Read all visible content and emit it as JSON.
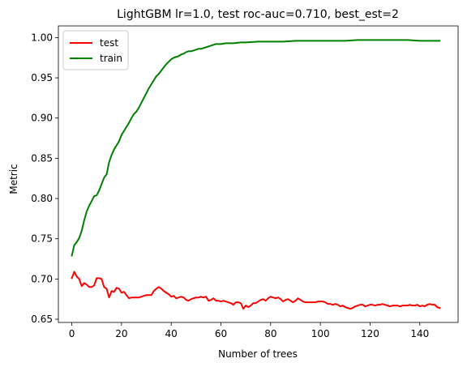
{
  "chart_data": {
    "type": "line",
    "title": "LightGBM lr=1.0, test roc-auc=0.710, best_est=2",
    "xlabel": "Number of trees",
    "ylabel": "Metric",
    "xlim": [
      -5.4,
      155.4
    ],
    "ylim": [
      0.646,
      1.0145
    ],
    "xticks": [
      0,
      20,
      40,
      60,
      80,
      100,
      120,
      140
    ],
    "xtick_labels": [
      "0",
      "20",
      "40",
      "60",
      "80",
      "100",
      "120",
      "140"
    ],
    "yticks": [
      0.65,
      0.7,
      0.75,
      0.8,
      0.85,
      0.9,
      0.95,
      1.0
    ],
    "ytick_labels": [
      "0.65",
      "0.70",
      "0.75",
      "0.80",
      "0.85",
      "0.90",
      "0.95",
      "1.00"
    ],
    "grid": false,
    "legend": "upper left",
    "series": [
      {
        "name": "test",
        "color": "#ff0000",
        "points": [
          [
            0,
            0.701
          ],
          [
            1,
            0.709
          ],
          [
            2,
            0.703
          ],
          [
            3,
            0.7
          ],
          [
            4,
            0.691
          ],
          [
            5,
            0.695
          ],
          [
            6,
            0.693
          ],
          [
            7,
            0.69
          ],
          [
            8,
            0.69
          ],
          [
            9,
            0.692
          ],
          [
            10,
            0.701
          ],
          [
            11,
            0.701
          ],
          [
            12,
            0.7
          ],
          [
            13,
            0.69
          ],
          [
            14,
            0.688
          ],
          [
            15,
            0.677
          ],
          [
            16,
            0.685
          ],
          [
            17,
            0.684
          ],
          [
            18,
            0.689
          ],
          [
            19,
            0.688
          ],
          [
            20,
            0.683
          ],
          [
            21,
            0.684
          ],
          [
            22,
            0.68
          ],
          [
            23,
            0.676
          ],
          [
            24,
            0.677
          ],
          [
            25,
            0.677
          ],
          [
            26,
            0.677
          ],
          [
            27,
            0.677
          ],
          [
            28,
            0.678
          ],
          [
            29,
            0.679
          ],
          [
            30,
            0.68
          ],
          [
            31,
            0.68
          ],
          [
            32,
            0.68
          ],
          [
            33,
            0.685
          ],
          [
            34,
            0.688
          ],
          [
            35,
            0.69
          ],
          [
            36,
            0.688
          ],
          [
            37,
            0.685
          ],
          [
            38,
            0.683
          ],
          [
            39,
            0.681
          ],
          [
            40,
            0.678
          ],
          [
            41,
            0.679
          ],
          [
            42,
            0.676
          ],
          [
            43,
            0.677
          ],
          [
            44,
            0.678
          ],
          [
            45,
            0.677
          ],
          [
            46,
            0.674
          ],
          [
            47,
            0.673
          ],
          [
            48,
            0.675
          ],
          [
            49,
            0.676
          ],
          [
            50,
            0.677
          ],
          [
            51,
            0.677
          ],
          [
            52,
            0.678
          ],
          [
            53,
            0.677
          ],
          [
            54,
            0.678
          ],
          [
            55,
            0.673
          ],
          [
            56,
            0.674
          ],
          [
            57,
            0.676
          ],
          [
            58,
            0.673
          ],
          [
            59,
            0.673
          ],
          [
            60,
            0.672
          ],
          [
            61,
            0.673
          ],
          [
            62,
            0.672
          ],
          [
            63,
            0.671
          ],
          [
            64,
            0.67
          ],
          [
            65,
            0.668
          ],
          [
            66,
            0.671
          ],
          [
            67,
            0.671
          ],
          [
            68,
            0.67
          ],
          [
            69,
            0.663
          ],
          [
            70,
            0.667
          ],
          [
            71,
            0.665
          ],
          [
            72,
            0.667
          ],
          [
            73,
            0.67
          ],
          [
            74,
            0.67
          ],
          [
            75,
            0.672
          ],
          [
            76,
            0.674
          ],
          [
            77,
            0.675
          ],
          [
            78,
            0.673
          ],
          [
            79,
            0.676
          ],
          [
            80,
            0.678
          ],
          [
            81,
            0.677
          ],
          [
            82,
            0.676
          ],
          [
            83,
            0.677
          ],
          [
            84,
            0.675
          ],
          [
            85,
            0.672
          ],
          [
            86,
            0.674
          ],
          [
            87,
            0.675
          ],
          [
            88,
            0.673
          ],
          [
            89,
            0.671
          ],
          [
            90,
            0.673
          ],
          [
            91,
            0.676
          ],
          [
            92,
            0.674
          ],
          [
            93,
            0.672
          ],
          [
            94,
            0.671
          ],
          [
            95,
            0.671
          ],
          [
            96,
            0.671
          ],
          [
            97,
            0.671
          ],
          [
            98,
            0.671
          ],
          [
            99,
            0.672
          ],
          [
            100,
            0.672
          ],
          [
            101,
            0.672
          ],
          [
            102,
            0.671
          ],
          [
            103,
            0.669
          ],
          [
            104,
            0.669
          ],
          [
            105,
            0.668
          ],
          [
            106,
            0.669
          ],
          [
            107,
            0.668
          ],
          [
            108,
            0.666
          ],
          [
            109,
            0.667
          ],
          [
            110,
            0.665
          ],
          [
            111,
            0.664
          ],
          [
            112,
            0.663
          ],
          [
            113,
            0.664
          ],
          [
            114,
            0.666
          ],
          [
            115,
            0.667
          ],
          [
            116,
            0.668
          ],
          [
            117,
            0.668
          ],
          [
            118,
            0.666
          ],
          [
            119,
            0.667
          ],
          [
            120,
            0.668
          ],
          [
            121,
            0.668
          ],
          [
            122,
            0.667
          ],
          [
            123,
            0.668
          ],
          [
            124,
            0.668
          ],
          [
            125,
            0.669
          ],
          [
            126,
            0.668
          ],
          [
            127,
            0.667
          ],
          [
            128,
            0.666
          ],
          [
            129,
            0.667
          ],
          [
            130,
            0.667
          ],
          [
            131,
            0.667
          ],
          [
            132,
            0.666
          ],
          [
            133,
            0.667
          ],
          [
            134,
            0.667
          ],
          [
            135,
            0.667
          ],
          [
            136,
            0.668
          ],
          [
            137,
            0.667
          ],
          [
            138,
            0.667
          ],
          [
            139,
            0.668
          ],
          [
            140,
            0.666
          ],
          [
            141,
            0.667
          ],
          [
            142,
            0.666
          ],
          [
            143,
            0.668
          ],
          [
            144,
            0.669
          ],
          [
            145,
            0.668
          ],
          [
            146,
            0.668
          ],
          [
            147,
            0.665
          ],
          [
            148,
            0.664
          ]
        ]
      },
      {
        "name": "train",
        "color": "#008000",
        "points": [
          [
            0,
            0.729
          ],
          [
            1,
            0.742
          ],
          [
            2,
            0.746
          ],
          [
            3,
            0.751
          ],
          [
            4,
            0.76
          ],
          [
            5,
            0.773
          ],
          [
            6,
            0.784
          ],
          [
            7,
            0.791
          ],
          [
            8,
            0.797
          ],
          [
            9,
            0.803
          ],
          [
            10,
            0.804
          ],
          [
            11,
            0.81
          ],
          [
            12,
            0.818
          ],
          [
            13,
            0.826
          ],
          [
            14,
            0.83
          ],
          [
            15,
            0.845
          ],
          [
            16,
            0.854
          ],
          [
            17,
            0.861
          ],
          [
            18,
            0.866
          ],
          [
            19,
            0.871
          ],
          [
            20,
            0.879
          ],
          [
            21,
            0.884
          ],
          [
            22,
            0.889
          ],
          [
            23,
            0.894
          ],
          [
            24,
            0.9
          ],
          [
            25,
            0.905
          ],
          [
            26,
            0.908
          ],
          [
            27,
            0.913
          ],
          [
            28,
            0.919
          ],
          [
            29,
            0.925
          ],
          [
            30,
            0.931
          ],
          [
            31,
            0.937
          ],
          [
            32,
            0.942
          ],
          [
            33,
            0.947
          ],
          [
            34,
            0.952
          ],
          [
            35,
            0.955
          ],
          [
            36,
            0.959
          ],
          [
            37,
            0.963
          ],
          [
            38,
            0.967
          ],
          [
            39,
            0.97
          ],
          [
            40,
            0.973
          ],
          [
            41,
            0.975
          ],
          [
            42,
            0.976
          ],
          [
            43,
            0.977
          ],
          [
            44,
            0.979
          ],
          [
            45,
            0.98
          ],
          [
            46,
            0.982
          ],
          [
            47,
            0.983
          ],
          [
            48,
            0.983
          ],
          [
            49,
            0.984
          ],
          [
            50,
            0.985
          ],
          [
            51,
            0.986
          ],
          [
            52,
            0.986
          ],
          [
            53,
            0.987
          ],
          [
            54,
            0.988
          ],
          [
            55,
            0.989
          ],
          [
            56,
            0.99
          ],
          [
            57,
            0.991
          ],
          [
            58,
            0.992
          ],
          [
            59,
            0.992
          ],
          [
            60,
            0.992
          ],
          [
            62,
            0.993
          ],
          [
            65,
            0.993
          ],
          [
            68,
            0.994
          ],
          [
            70,
            0.994
          ],
          [
            75,
            0.995
          ],
          [
            80,
            0.995
          ],
          [
            85,
            0.995
          ],
          [
            90,
            0.996
          ],
          [
            95,
            0.996
          ],
          [
            100,
            0.996
          ],
          [
            105,
            0.996
          ],
          [
            110,
            0.996
          ],
          [
            115,
            0.997
          ],
          [
            120,
            0.997
          ],
          [
            125,
            0.997
          ],
          [
            130,
            0.997
          ],
          [
            135,
            0.997
          ],
          [
            140,
            0.996
          ],
          [
            145,
            0.996
          ],
          [
            148,
            0.996
          ]
        ]
      }
    ]
  }
}
